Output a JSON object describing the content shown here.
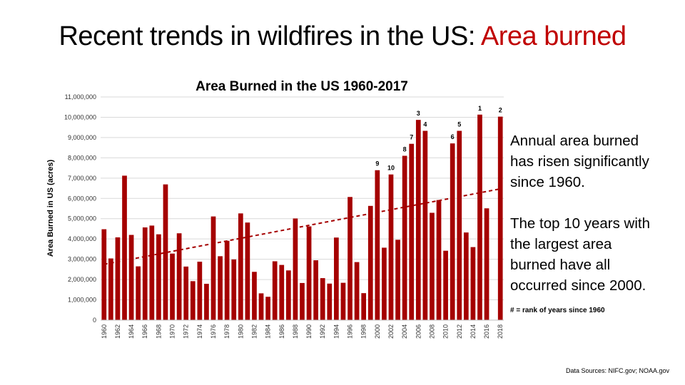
{
  "slide": {
    "title_main": "Recent trends in wildfires in the US:",
    "title_accent": "Area burned",
    "text_line1": "Annual area burned",
    "text_line2": "has risen significantly",
    "text_line3": "since 1960.",
    "text_line4": "The top 10 years with",
    "text_line5": "the largest area",
    "text_line6": "burned have all",
    "text_line7": "occurred since 2000.",
    "rank_note": "# =  rank of years since 1960",
    "source": "Data Sources: NIFC.gov; NOAA.gov"
  },
  "colors": {
    "bar": "#a50000",
    "accent": "#c00000",
    "trend": "#a50000",
    "grid": "#d9d9d9"
  },
  "chart_data": {
    "type": "bar",
    "title": "Area Burned in the US 1960-2017",
    "ylabel": "Area Burned in US (acres)",
    "xlabel": "",
    "ylim": [
      0,
      11000000
    ],
    "yticks": [
      0,
      1000000,
      2000000,
      3000000,
      4000000,
      5000000,
      6000000,
      7000000,
      8000000,
      9000000,
      10000000,
      11000000
    ],
    "ytick_labels": [
      "0",
      "1,000,000",
      "2,000,000",
      "3,000,000",
      "4,000,000",
      "5,000,000",
      "6,000,000",
      "7,000,000",
      "8,000,000",
      "9,000,000",
      "10,000,000",
      "11,000,000"
    ],
    "grid": true,
    "categories": [
      "1960",
      "1961",
      "1962",
      "1963",
      "1964",
      "1965",
      "1966",
      "1967",
      "1968",
      "1969",
      "1970",
      "1971",
      "1972",
      "1973",
      "1974",
      "1975",
      "1976",
      "1977",
      "1978",
      "1979",
      "1980",
      "1981",
      "1982",
      "1983",
      "1984",
      "1985",
      "1986",
      "1987",
      "1988",
      "1989",
      "1990",
      "1991",
      "1992",
      "1993",
      "1994",
      "1995",
      "1996",
      "1997",
      "1998",
      "1999",
      "2000",
      "2001",
      "2002",
      "2003",
      "2004",
      "2005",
      "2006",
      "2007",
      "2008",
      "2009",
      "2010",
      "2011",
      "2012",
      "2013",
      "2014",
      "2015",
      "2016",
      "2017",
      "2018"
    ],
    "tick_labels": [
      "1960",
      "1962",
      "1964",
      "1966",
      "1968",
      "1970",
      "1972",
      "1974",
      "1976",
      "1978",
      "1980",
      "1982",
      "1984",
      "1986",
      "1988",
      "1990",
      "1992",
      "1994",
      "1996",
      "1998",
      "2000",
      "2002",
      "2004",
      "2006",
      "2008",
      "2010",
      "2012",
      "2014",
      "2016",
      "2018"
    ],
    "values": [
      4480000,
      3040000,
      4080000,
      7120000,
      4200000,
      2650000,
      4570000,
      4660000,
      4230000,
      6690000,
      3280000,
      4280000,
      2640000,
      1920000,
      2880000,
      1790000,
      5110000,
      3150000,
      3910000,
      2990000,
      5260000,
      4810000,
      2380000,
      1320000,
      1150000,
      2900000,
      2720000,
      2450000,
      5010000,
      1830000,
      4620000,
      2950000,
      2070000,
      1800000,
      4070000,
      1840000,
      6070000,
      2860000,
      1330000,
      5630000,
      7390000,
      3570000,
      7180000,
      3960000,
      8100000,
      8690000,
      9870000,
      9330000,
      5290000,
      5920000,
      3420000,
      8710000,
      9330000,
      4320000,
      3600000,
      10130000,
      5510000,
      null,
      10030000
    ],
    "rank_labels": [
      {
        "year": "2015",
        "rank": "1"
      },
      {
        "year": "2018",
        "rank": "2"
      },
      {
        "year": "2006",
        "rank": "3"
      },
      {
        "year": "2007",
        "rank": "4"
      },
      {
        "year": "2012",
        "rank": "5"
      },
      {
        "year": "2011",
        "rank": "6"
      },
      {
        "year": "2005",
        "rank": "7"
      },
      {
        "year": "2004",
        "rank": "8"
      },
      {
        "year": "2000",
        "rank": "9"
      },
      {
        "year": "2002",
        "rank": "10"
      }
    ],
    "trendline": {
      "style": "dashed",
      "start": [
        1960,
        2750000
      ],
      "end": [
        2018,
        6470000
      ]
    }
  }
}
